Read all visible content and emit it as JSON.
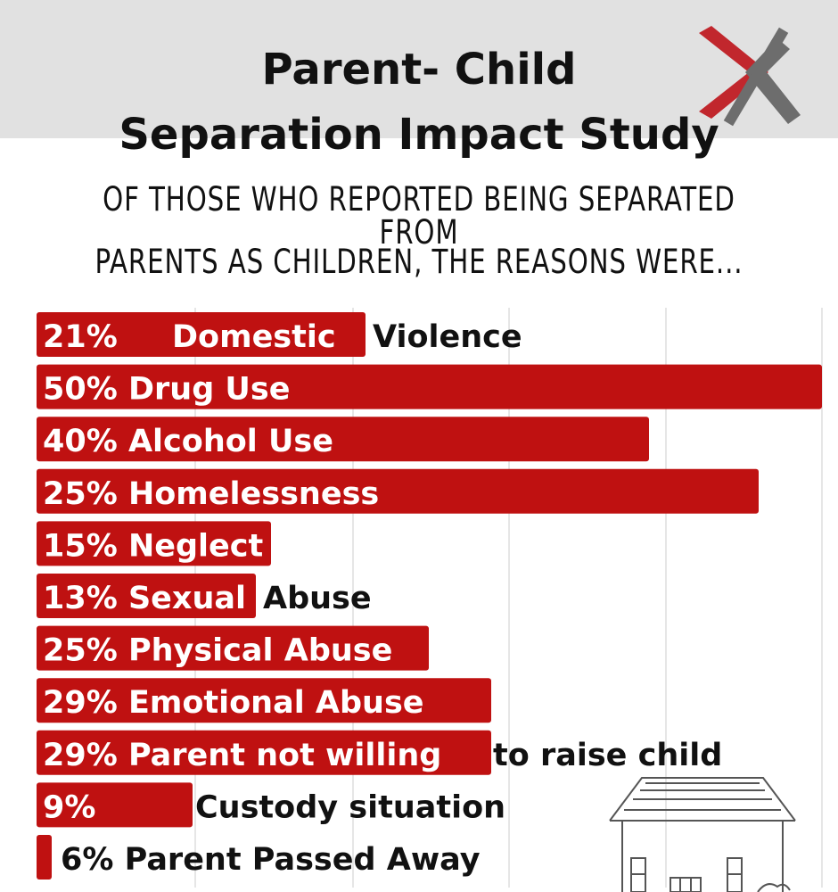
{
  "title_line1": "Parent- Child",
  "title_line2": "Separation Impact Study",
  "subtitle_line1": "OF THOSE WHO REPORTED BEING SEPARATED FROM",
  "subtitle_line2": "PARENTS AS CHILDREN, THE REASONS WERE...",
  "colors": {
    "bar": "#bf1111",
    "band": "#e1e1e1",
    "logo_red": "#c1272d",
    "logo_gray": "#6d6d6d",
    "text": "#111111"
  },
  "icons": [
    "x-logo-icon",
    "house-icon"
  ],
  "chart_data": {
    "type": "bar",
    "orientation": "horizontal",
    "grid": true,
    "categories": [
      "Domestic Violence",
      "Drug Use",
      "Alcohol Use",
      "Homelessness",
      "Neglect",
      "Sexual Abuse",
      "Physical Abuse",
      "Emotional Abuse",
      "Parent not willing to raise child",
      "Custody situation",
      "Parent Passed Away"
    ],
    "values": [
      21,
      50,
      40,
      25,
      15,
      13,
      25,
      29,
      29,
      9,
      6
    ],
    "labels": [
      {
        "pct": "21%",
        "inside": "Domestic",
        "outside": "Violence"
      },
      {
        "pct": "50%",
        "inside": "Drug Use",
        "outside": ""
      },
      {
        "pct": "40%",
        "inside": "Alcohol Use",
        "outside": ""
      },
      {
        "pct": "25%",
        "inside": "Homelessness",
        "outside": ""
      },
      {
        "pct": "15%",
        "inside": "Neglect",
        "outside": ""
      },
      {
        "pct": "13%",
        "inside": "Sexual",
        "outside": "Abuse"
      },
      {
        "pct": "25%",
        "inside": "Physical Abuse",
        "outside": ""
      },
      {
        "pct": "29%",
        "inside": "Emotional Abuse",
        "outside": ""
      },
      {
        "pct": "29%",
        "inside": "Parent not willing",
        "outside": "to raise child"
      },
      {
        "pct": "9%",
        "inside": "",
        "outside": "Custody situation"
      },
      {
        "pct": "6%",
        "inside": "",
        "outside": "Parent Passed Away"
      }
    ]
  }
}
